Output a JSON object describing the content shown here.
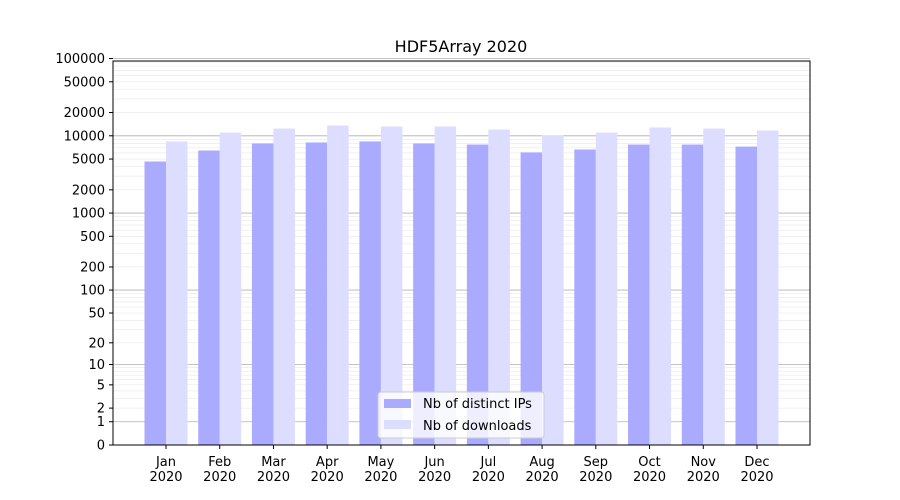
{
  "chart_data": {
    "type": "bar",
    "title": "HDF5Array 2020",
    "xlabel": "",
    "ylabel": "",
    "y_scale": "symlog",
    "ylim": [
      0,
      100000
    ],
    "y_ticks": [
      0,
      1,
      2,
      5,
      10,
      20,
      50,
      100,
      200,
      500,
      1000,
      2000,
      5000,
      10000,
      20000,
      50000,
      100000
    ],
    "grid": true,
    "legend_position": "bottom-center",
    "categories": [
      "Jan\n2020",
      "Feb\n2020",
      "Mar\n2020",
      "Apr\n2020",
      "May\n2020",
      "Jun\n2020",
      "Jul\n2020",
      "Aug\n2020",
      "Sep\n2020",
      "Oct\n2020",
      "Nov\n2020",
      "Dec\n2020"
    ],
    "series": [
      {
        "name": "Nb of distinct IPs",
        "color": "#aaaaff",
        "values": [
          4650,
          6450,
          7950,
          8200,
          8450,
          7950,
          7700,
          6100,
          6650,
          7700,
          7700,
          7250
        ]
      },
      {
        "name": "Nb of downloads",
        "color": "#ddddff",
        "values": [
          8450,
          11000,
          12400,
          13600,
          13200,
          13200,
          12050,
          10100,
          11000,
          12800,
          12400,
          11700
        ]
      }
    ]
  }
}
